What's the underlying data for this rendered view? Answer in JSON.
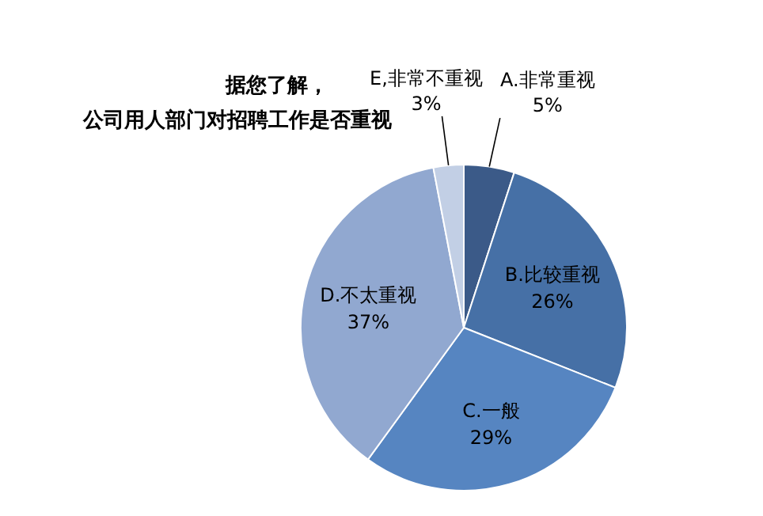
{
  "chart_data": {
    "type": "pie",
    "title": "据您了解，",
    "subtitle": "公司用人部门对招聘工作是否重视",
    "categories": [
      "A.非常重视",
      "B.比较重视",
      "C.一般",
      "D.不太重视",
      "E,非常不重视"
    ],
    "values": [
      5,
      26,
      29,
      37,
      3
    ],
    "value_labels": [
      "5%",
      "26%",
      "29%",
      "37%",
      "3%"
    ],
    "colors": [
      "#3b5a88",
      "#4670a6",
      "#5685c1",
      "#91a8d0",
      "#c2cfe5"
    ]
  }
}
